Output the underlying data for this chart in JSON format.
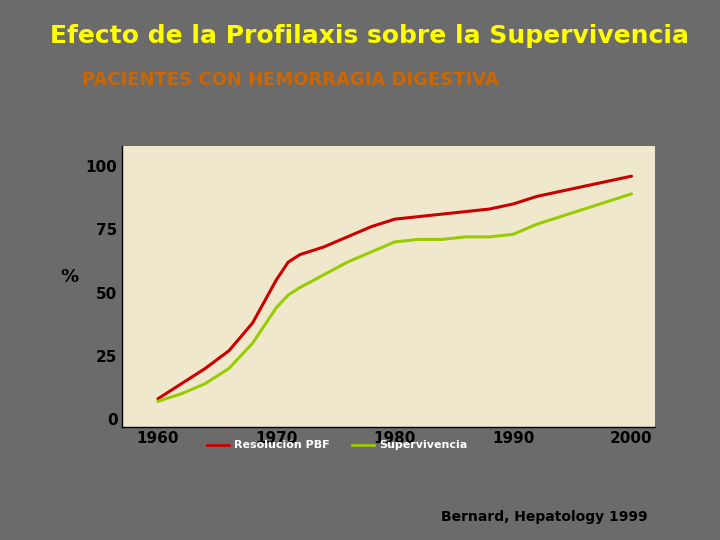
{
  "title": "Efecto de la Profilaxis sobre la Supervivencia",
  "subtitle": "PACIENTES CON HEMORRAGIA DIGESTIVA",
  "title_color": "#FFFF00",
  "subtitle_color": "#CC6600",
  "bg_color": "#6B6B6B",
  "subtitle_bg": "#FFFFC0",
  "chart_bg": "#F0E8CC",
  "ylabel": "%",
  "yticks": [
    0,
    25,
    50,
    75,
    100
  ],
  "xticks": [
    1960,
    1970,
    1980,
    1990,
    2000
  ],
  "xlim": [
    1957,
    2002
  ],
  "ylim": [
    -3,
    108
  ],
  "line1_label": "Resolución PBF",
  "line2_label": "Supervivencia",
  "line1_color": "#CC0000",
  "line2_color": "#99CC00",
  "legend_bg": "#007070",
  "citation": "Bernard, Hepatology 1999",
  "line1_x": [
    1960,
    1962,
    1964,
    1966,
    1968,
    1970,
    1971,
    1972,
    1974,
    1976,
    1978,
    1980,
    1982,
    1984,
    1986,
    1988,
    1990,
    1992,
    1994,
    1996,
    1998,
    2000
  ],
  "line1_y": [
    8,
    14,
    20,
    27,
    38,
    55,
    62,
    65,
    68,
    72,
    76,
    79,
    80,
    81,
    82,
    83,
    85,
    88,
    90,
    92,
    94,
    96
  ],
  "line2_x": [
    1960,
    1962,
    1964,
    1966,
    1968,
    1970,
    1971,
    1972,
    1974,
    1976,
    1978,
    1980,
    1982,
    1984,
    1986,
    1988,
    1990,
    1992,
    1994,
    1996,
    1998,
    2000
  ],
  "line2_y": [
    7,
    10,
    14,
    20,
    30,
    44,
    49,
    52,
    57,
    62,
    66,
    70,
    71,
    71,
    72,
    72,
    73,
    77,
    80,
    83,
    86,
    89
  ]
}
